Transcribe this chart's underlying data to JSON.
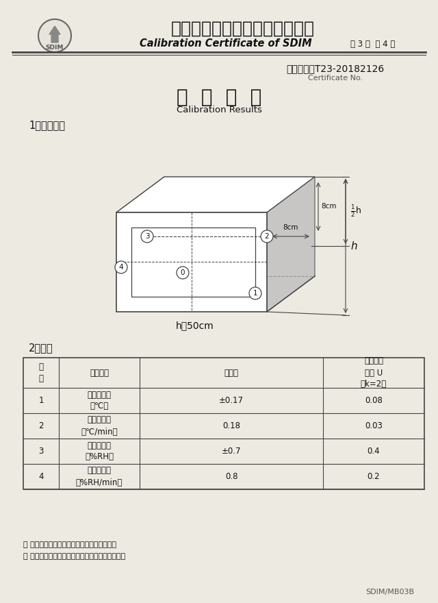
{
  "title_zh": "山东省计量科学研究院校准证书",
  "title_en": "Calibration Certificate of SDIM",
  "page_info": "第 3 页  共 4 页",
  "cert_no_label": "证书编号：T23-20182126",
  "cert_no_sub": "Certificate No.",
  "section1_zh": "校  准  结  果",
  "section1_en": "Calibration Results",
  "subsection1": "1、布点图：",
  "diagram_label": "h＜50cm",
  "subsection2": "2、数据",
  "table_headers_line1": [
    "序",
    "校准项目",
    "校准值",
    "扩展不确"
  ],
  "table_headers_line2": [
    "号",
    "",
    "",
    "定度 U"
  ],
  "table_headers_line3": [
    "",
    "",
    "",
    "（k=2）"
  ],
  "table_rows": [
    [
      "1",
      "温度波动度\n（℃）",
      "±0.17",
      "0.08"
    ],
    [
      "2",
      "温度变化率\n（℃/min）",
      "0.18",
      "0.03"
    ],
    [
      "3",
      "湿度波动度\n（%RH）",
      "±0.7",
      "0.4"
    ],
    [
      "4",
      "湿度变化率\n（%RH/min）",
      "0.8",
      "0.2"
    ]
  ],
  "footer1": "＊ 未经本院书面批准，不得部分复印此证书。",
  "footer2": "＊ 本证书的校准结果仅对所校准的计量器具有效。",
  "footer3": "SDIM/MB03B",
  "bg_color": "#edeae2",
  "text_color": "#111111",
  "line_color": "#444444",
  "table_line_color": "#444444"
}
